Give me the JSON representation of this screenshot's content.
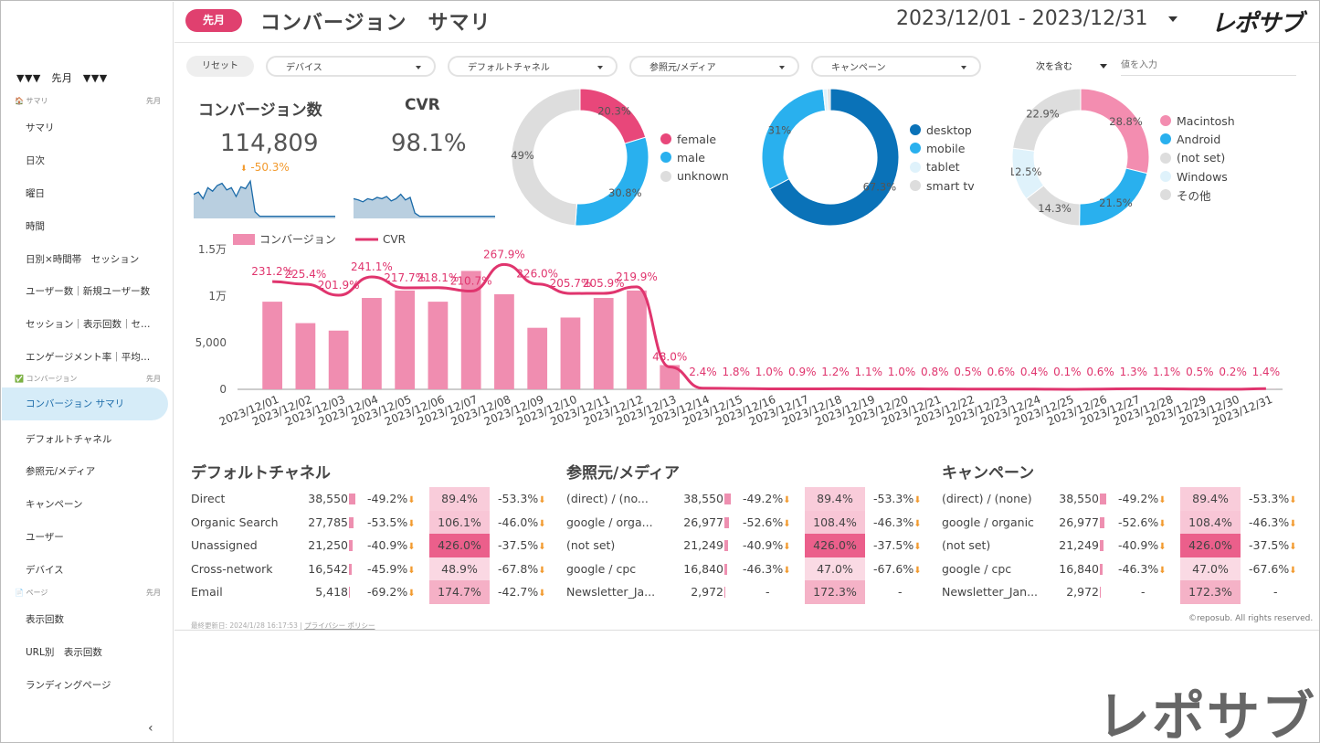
{
  "header": {
    "period_pill": "先月",
    "title": "コンバージョン　サマリ",
    "date_range": "2023/12/01 - 2023/12/31",
    "logo": "レポサブ"
  },
  "sidebar": {
    "period_label": "▼▼▼　先月　▼▼▼",
    "sections": [
      {
        "label": "🏠 サマリ",
        "right": "先月",
        "items": [
          "サマリ",
          "日次",
          "曜日",
          "時間",
          "日別×時間帯　セッション",
          "ユーザー数｜新規ユーザー数",
          "セッション｜表示回数｜セ…",
          "エンゲージメント率｜平均…"
        ]
      },
      {
        "label": "✅ コンバージョン",
        "right": "先月",
        "items": [
          "コンバージョン サマリ",
          "デフォルトチャネル",
          "参照元/メディア",
          "キャンペーン",
          "ユーザー",
          "デバイス"
        ]
      },
      {
        "label": "📄 ページ",
        "right": "先月",
        "items": [
          "表示回数",
          "URL別　表示回数",
          "ランディングページ"
        ]
      }
    ],
    "collapse": "‹"
  },
  "filters": {
    "reset": "リセット",
    "device": "デバイス",
    "channel": "デフォルトチャネル",
    "source": "参照元/メディア",
    "campaign": "キャンペーン",
    "condition": "次を含む",
    "value_placeholder": "値を入力"
  },
  "kpi": {
    "cv_title": "コンバージョン数",
    "cv_value": "114,809",
    "cv_delta": "-50.3%",
    "cvr_title": "CVR",
    "cvr_value": "98.1%"
  },
  "sparklines": {
    "cv": [
      0.55,
      0.6,
      0.45,
      0.7,
      0.62,
      0.75,
      0.8,
      0.65,
      0.7,
      0.5,
      0.72,
      0.68,
      0.85,
      0.15,
      0.05,
      0.05,
      0.05,
      0.05,
      0.05,
      0.05,
      0.05,
      0.05,
      0.05,
      0.05,
      0.05,
      0.05,
      0.05,
      0.05,
      0.05,
      0.05,
      0.05
    ],
    "cvr": [
      0.45,
      0.42,
      0.38,
      0.45,
      0.42,
      0.48,
      0.45,
      0.5,
      0.4,
      0.45,
      0.55,
      0.42,
      0.48,
      0.12,
      0.05,
      0.05,
      0.05,
      0.05,
      0.05,
      0.05,
      0.05,
      0.05,
      0.05,
      0.05,
      0.05,
      0.05,
      0.05,
      0.05,
      0.05,
      0.05,
      0.05
    ]
  },
  "donuts": [
    {
      "name": "gender",
      "slices": [
        {
          "label": "female",
          "pct": 20.3,
          "text": "20.3%",
          "color": "#e8477a"
        },
        {
          "label": "male",
          "pct": 30.8,
          "text": "30.8%",
          "color": "#29b0ee"
        },
        {
          "label": "unknown",
          "pct": 48.9,
          "text": "49%",
          "color": "#dddddd"
        }
      ]
    },
    {
      "name": "device",
      "slices": [
        {
          "label": "desktop",
          "pct": 67.3,
          "text": "67.3%",
          "color": "#0a72b8"
        },
        {
          "label": "mobile",
          "pct": 31,
          "text": "31%",
          "color": "#29b0ee"
        },
        {
          "label": "tablet",
          "pct": 1.0,
          "text": "",
          "color": "#dff2fb"
        },
        {
          "label": "smart tv",
          "pct": 0.7,
          "text": "",
          "color": "#dddddd"
        }
      ]
    },
    {
      "name": "os",
      "slices": [
        {
          "label": "Macintosh",
          "pct": 28.8,
          "text": "28.8%",
          "color": "#f38db0"
        },
        {
          "label": "Android",
          "pct": 21.5,
          "text": "21.5%",
          "color": "#29b0ee"
        },
        {
          "label": "(not set)",
          "pct": 14.3,
          "text": "14.3%",
          "color": "#dddddd"
        },
        {
          "label": "Windows",
          "pct": 12.5,
          "text": "12.5%",
          "color": "#dff2fb"
        },
        {
          "label": "その他",
          "pct": 22.9,
          "text": "22.9%",
          "color": "#dddddd"
        }
      ]
    }
  ],
  "chart_data": {
    "type": "bar",
    "legend": [
      "コンバージョン",
      "CVR"
    ],
    "categories": [
      "2023/12/01",
      "2023/12/02",
      "2023/12/03",
      "2023/12/04",
      "2023/12/05",
      "2023/12/06",
      "2023/12/07",
      "2023/12/08",
      "2023/12/09",
      "2023/12/10",
      "2023/12/11",
      "2023/12/12",
      "2023/12/13",
      "2023/12/14",
      "2023/12/15",
      "2023/12/16",
      "2023/12/17",
      "2023/12/18",
      "2023/12/19",
      "2023/12/20",
      "2023/12/21",
      "2023/12/22",
      "2023/12/23",
      "2023/12/24",
      "2023/12/25",
      "2023/12/26",
      "2023/12/27",
      "2023/12/28",
      "2023/12/29",
      "2023/12/30",
      "2023/12/31"
    ],
    "series": [
      {
        "name": "コンバージョン",
        "type": "bar",
        "color": "#f08db0",
        "values": [
          9400,
          7100,
          6300,
          9800,
          10600,
          9400,
          12700,
          10200,
          6600,
          7700,
          9800,
          10600,
          2600,
          20,
          15,
          10,
          10,
          12,
          10,
          10,
          8,
          6,
          6,
          5,
          2,
          6,
          12,
          10,
          6,
          3,
          14
        ]
      },
      {
        "name": "CVR",
        "type": "line",
        "color": "#e0356e",
        "values": [
          231.2,
          225.4,
          201.9,
          241.1,
          217.7,
          218.1,
          210.7,
          267.9,
          226.0,
          205.7,
          205.9,
          219.9,
          48.0,
          2.4,
          1.8,
          1.0,
          0.9,
          1.2,
          1.1,
          1.0,
          0.8,
          0.5,
          0.6,
          0.4,
          0.1,
          0.6,
          1.3,
          1.1,
          0.5,
          0.2,
          1.4
        ],
        "labels": [
          "231.2%",
          "225.4%",
          "201.9%",
          "241.1%",
          "217.7%",
          "218.1%",
          "210.7%",
          "267.9%",
          "226.0%",
          "205.7%",
          "205.9%",
          "219.9%",
          "48.0%",
          "2.4%",
          "1.8%",
          "1.0%",
          "0.9%",
          "1.2%",
          "1.1%",
          "1.0%",
          "0.8%",
          "0.5%",
          "0.6%",
          "0.4%",
          "0.1%",
          "0.6%",
          "1.3%",
          "1.1%",
          "0.5%",
          "0.2%",
          "1.4%"
        ]
      }
    ],
    "y_ticks": [
      "0",
      "5,000",
      "1万",
      "1.5万"
    ],
    "y_tick_values": [
      0,
      5000,
      10000,
      15000
    ],
    "ylim": [
      0,
      15000
    ],
    "y2lim": [
      0,
      300
    ]
  },
  "tables": [
    {
      "title": "デフォルトチャネル",
      "rows": [
        {
          "name": "Direct",
          "count": "38,550",
          "countv": 38550,
          "d1": "-49.2%",
          "cvr": "89.4%",
          "cvrv": 89.4,
          "d2": "-53.3%"
        },
        {
          "name": "Organic Search",
          "count": "27,785",
          "countv": 27785,
          "d1": "-53.5%",
          "cvr": "106.1%",
          "cvrv": 106.1,
          "d2": "-46.0%"
        },
        {
          "name": "Unassigned",
          "count": "21,250",
          "countv": 21250,
          "d1": "-40.9%",
          "cvr": "426.0%",
          "cvrv": 426,
          "d2": "-37.5%"
        },
        {
          "name": "Cross-network",
          "count": "16,542",
          "countv": 16542,
          "d1": "-45.9%",
          "cvr": "48.9%",
          "cvrv": 48.9,
          "d2": "-67.8%"
        },
        {
          "name": "Email",
          "count": "5,418",
          "countv": 5418,
          "d1": "-69.2%",
          "cvr": "174.7%",
          "cvrv": 174.7,
          "d2": "-42.7%"
        }
      ]
    },
    {
      "title": "参照元/メディア",
      "rows": [
        {
          "name": "(direct) / (no...",
          "count": "38,550",
          "countv": 38550,
          "d1": "-49.2%",
          "cvr": "89.4%",
          "cvrv": 89.4,
          "d2": "-53.3%"
        },
        {
          "name": "google / orga...",
          "count": "26,977",
          "countv": 26977,
          "d1": "-52.6%",
          "cvr": "108.4%",
          "cvrv": 108.4,
          "d2": "-46.3%"
        },
        {
          "name": "(not set)",
          "count": "21,249",
          "countv": 21249,
          "d1": "-40.9%",
          "cvr": "426.0%",
          "cvrv": 426,
          "d2": "-37.5%"
        },
        {
          "name": "google / cpc",
          "count": "16,840",
          "countv": 16840,
          "d1": "-46.3%",
          "cvr": "47.0%",
          "cvrv": 47,
          "d2": "-67.6%"
        },
        {
          "name": "Newsletter_Ja...",
          "count": "2,972",
          "countv": 2972,
          "d1": "-",
          "cvr": "172.3%",
          "cvrv": 172.3,
          "d2": "-"
        }
      ]
    },
    {
      "title": "キャンペーン",
      "rows": [
        {
          "name": "(direct) / (none)",
          "count": "38,550",
          "countv": 38550,
          "d1": "-49.2%",
          "cvr": "89.4%",
          "cvrv": 89.4,
          "d2": "-53.3%"
        },
        {
          "name": "google / organic",
          "count": "26,977",
          "countv": 26977,
          "d1": "-52.6%",
          "cvr": "108.4%",
          "cvrv": 108.4,
          "d2": "-46.3%"
        },
        {
          "name": "(not set)",
          "count": "21,249",
          "countv": 21249,
          "d1": "-40.9%",
          "cvr": "426.0%",
          "cvrv": 426,
          "d2": "-37.5%"
        },
        {
          "name": "google / cpc",
          "count": "16,840",
          "countv": 16840,
          "d1": "-46.3%",
          "cvr": "47.0%",
          "cvrv": 47,
          "d2": "-67.6%"
        },
        {
          "name": "Newsletter_Jan...",
          "count": "2,972",
          "countv": 2972,
          "d1": "-",
          "cvr": "172.3%",
          "cvrv": 172.3,
          "d2": "-"
        }
      ]
    }
  ],
  "footer": {
    "updated": "最終更新日: 2024/1/28 16:17:53",
    "privacy": "プライバシー ポリシー",
    "copyright": "©reposub. All rights reserved.",
    "big_logo": "レポサブ"
  }
}
